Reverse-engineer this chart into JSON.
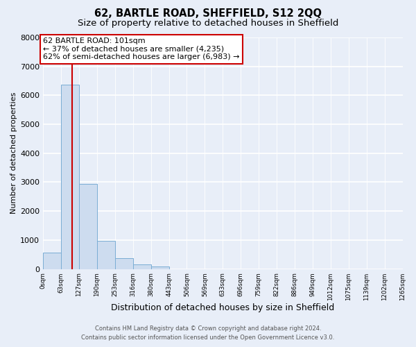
{
  "title": "62, BARTLE ROAD, SHEFFIELD, S12 2QQ",
  "subtitle": "Size of property relative to detached houses in Sheffield",
  "xlabel": "Distribution of detached houses by size in Sheffield",
  "ylabel": "Number of detached properties",
  "bar_values": [
    560,
    6380,
    2950,
    970,
    370,
    150,
    80,
    0,
    0,
    0,
    0,
    0,
    0,
    0,
    0,
    0,
    0,
    0,
    0,
    0
  ],
  "bar_labels": [
    "0sqm",
    "63sqm",
    "127sqm",
    "190sqm",
    "253sqm",
    "316sqm",
    "380sqm",
    "443sqm",
    "506sqm",
    "569sqm",
    "633sqm",
    "696sqm",
    "759sqm",
    "822sqm",
    "886sqm",
    "949sqm",
    "1012sqm",
    "1075sqm",
    "1139sqm",
    "1202sqm",
    "1265sqm"
  ],
  "bar_color": "#cddcef",
  "bar_edge_color": "#7aadd4",
  "vline_color": "#cc0000",
  "vline_x": 1.6,
  "ylim_max": 8000,
  "yticks": [
    0,
    1000,
    2000,
    3000,
    4000,
    5000,
    6000,
    7000,
    8000
  ],
  "annotation_title": "62 BARTLE ROAD: 101sqm",
  "annotation_line1": "← 37% of detached houses are smaller (4,235)",
  "annotation_line2": "62% of semi-detached houses are larger (6,983) →",
  "footer_line1": "Contains HM Land Registry data © Crown copyright and database right 2024.",
  "footer_line2": "Contains public sector information licensed under the Open Government Licence v3.0.",
  "background_color": "#e8eef8",
  "grid_color": "#ffffff",
  "title_fontsize": 10.5,
  "subtitle_fontsize": 9.5,
  "ylabel_fontsize": 8,
  "xlabel_fontsize": 9
}
